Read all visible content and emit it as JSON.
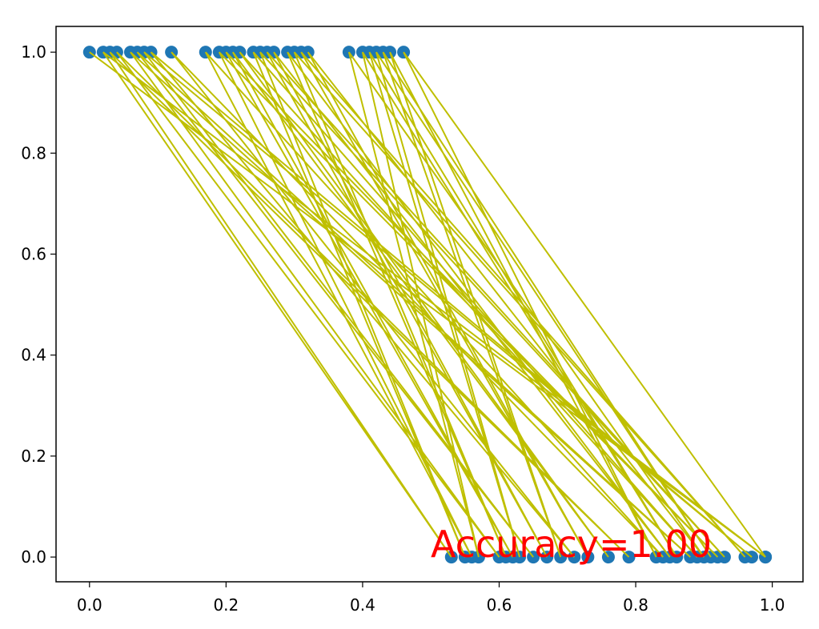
{
  "chart_data": {
    "type": "line",
    "markers": true,
    "x": [
      0.0,
      0.99,
      0.02,
      0.53,
      0.03,
      0.79,
      0.04,
      0.6,
      0.06,
      0.88,
      0.07,
      0.65,
      0.08,
      0.97,
      0.09,
      0.71,
      0.12,
      0.84,
      0.17,
      0.56,
      0.19,
      0.92,
      0.2,
      0.62,
      0.21,
      0.76,
      0.22,
      0.89,
      0.24,
      0.55,
      0.25,
      0.93,
      0.26,
      0.67,
      0.27,
      0.85,
      0.29,
      0.61,
      0.3,
      0.96,
      0.31,
      0.73,
      0.32,
      0.9,
      0.38,
      0.57,
      0.4,
      0.86,
      0.41,
      0.63,
      0.42,
      0.91,
      0.43,
      0.69,
      0.44,
      0.83,
      0.46,
      0.99
    ],
    "values": [
      1,
      0,
      1,
      0,
      1,
      0,
      1,
      0,
      1,
      0,
      1,
      0,
      1,
      0,
      1,
      0,
      1,
      0,
      1,
      0,
      1,
      0,
      1,
      0,
      1,
      0,
      1,
      0,
      1,
      0,
      1,
      0,
      1,
      0,
      1,
      0,
      1,
      0,
      1,
      0,
      1,
      0,
      1,
      0,
      1,
      0,
      1,
      0,
      1,
      0,
      1,
      0,
      1,
      0,
      1,
      0,
      1,
      0
    ],
    "line_color": "#bfbf00",
    "marker_color": "#1f77b4",
    "xlim": [
      -0.049,
      1.045
    ],
    "ylim": [
      -0.049,
      1.051
    ],
    "xticks": [
      {
        "value": 0,
        "label": "0.0"
      },
      0.2,
      0.4,
      0.6,
      0.8,
      {
        "value": 1,
        "label": "1.0"
      }
    ],
    "yticks": [
      {
        "value": 0,
        "label": "0.0"
      },
      0.2,
      0.4,
      0.6,
      0.8,
      {
        "value": 1,
        "label": "1.0"
      }
    ],
    "annotation": "Accuracy=1.00",
    "annotation_color": "#ff0000"
  }
}
